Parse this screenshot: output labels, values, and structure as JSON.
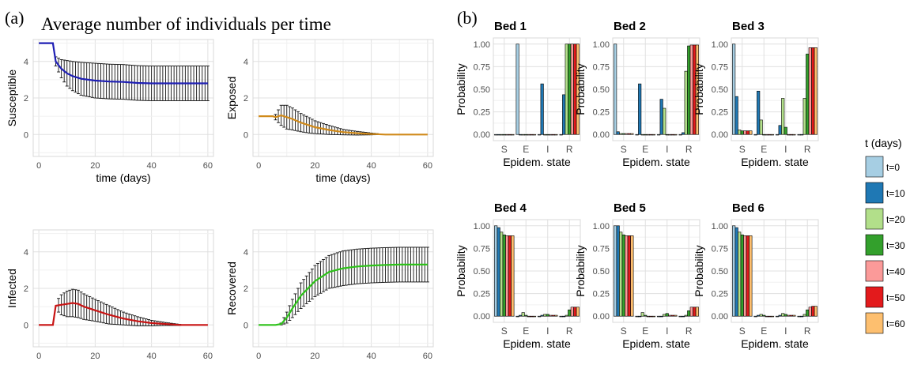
{
  "panel_a": {
    "tag": "(a)",
    "title": "Average number of individuals per time"
  },
  "panel_b": {
    "tag": "(b)"
  },
  "colors": {
    "susceptible": "#1f1fb4",
    "exposed": "#d08a1a",
    "infected": "#c81414",
    "recovered": "#2ec21a",
    "t0": "#a6cee3",
    "t10": "#1f78b4",
    "t20": "#b2df8a",
    "t30": "#33a02c",
    "t40": "#fb9a99",
    "t50": "#e31a1c",
    "t60": "#fdbf6f"
  },
  "legend": {
    "title": "t (days)",
    "entries": [
      "t=0",
      "t=10",
      "t=20",
      "t=30",
      "t=40",
      "t=50",
      "t=60"
    ]
  },
  "chart_data": [
    {
      "type": "line",
      "id": "susceptible",
      "ylabel": "Susceptible",
      "xlabel": "time (days)",
      "xlim": [
        -2,
        62
      ],
      "ylim": [
        -1.2,
        5.2
      ],
      "xticks": [
        0,
        20,
        40,
        60
      ],
      "yticks": [
        0,
        2,
        4
      ],
      "grid": true,
      "series_color_key": "susceptible",
      "x": [
        0,
        5,
        6,
        8,
        10,
        12,
        15,
        20,
        25,
        30,
        35,
        40,
        45,
        50,
        55,
        60
      ],
      "y": [
        5,
        5,
        4.0,
        3.6,
        3.35,
        3.2,
        3.05,
        2.95,
        2.9,
        2.88,
        2.82,
        2.8,
        2.8,
        2.8,
        2.8,
        2.8
      ],
      "err": [
        0,
        0,
        0.25,
        0.5,
        0.7,
        0.8,
        0.9,
        0.95,
        0.95,
        0.95,
        0.95,
        0.95,
        0.95,
        0.95,
        0.95,
        0.95
      ],
      "err_start": 6
    },
    {
      "type": "line",
      "id": "exposed",
      "ylabel": "Exposed",
      "xlabel": "time (days)",
      "xlim": [
        -2,
        62
      ],
      "ylim": [
        -1.2,
        5.2
      ],
      "xticks": [
        0,
        20,
        40,
        60
      ],
      "yticks": [
        0,
        2,
        4
      ],
      "grid": true,
      "series_color_key": "exposed",
      "x": [
        0,
        5,
        6,
        8,
        10,
        12,
        15,
        18,
        20,
        25,
        30,
        35,
        40,
        42,
        45,
        50,
        55,
        60
      ],
      "y": [
        1,
        1,
        0.95,
        1.05,
        0.95,
        0.85,
        0.65,
        0.5,
        0.4,
        0.25,
        0.13,
        0.07,
        0.03,
        0.02,
        0,
        0,
        0,
        0
      ],
      "err": [
        0,
        0,
        0.15,
        0.55,
        0.65,
        0.6,
        0.5,
        0.42,
        0.35,
        0.25,
        0.15,
        0.1,
        0.05,
        0.03,
        0,
        0,
        0,
        0
      ],
      "err_start": 6,
      "err_end": 42
    },
    {
      "type": "line",
      "id": "infected",
      "ylabel": "Infected",
      "xlabel": "time (days)",
      "xlim": [
        -2,
        62
      ],
      "ylim": [
        -1.2,
        5.2
      ],
      "xticks": [
        0,
        20,
        40,
        60
      ],
      "yticks": [
        0,
        2,
        4
      ],
      "grid": true,
      "series_color_key": "infected",
      "x": [
        0,
        5,
        6,
        8,
        10,
        12,
        14,
        16,
        20,
        25,
        30,
        35,
        40,
        45,
        50,
        55,
        60
      ],
      "y": [
        0,
        0,
        1.05,
        1.1,
        1.15,
        1.2,
        1.15,
        1.0,
        0.8,
        0.55,
        0.35,
        0.2,
        0.1,
        0.05,
        0,
        0,
        0
      ],
      "err": [
        0,
        0,
        0.2,
        0.55,
        0.7,
        0.75,
        0.75,
        0.7,
        0.6,
        0.5,
        0.35,
        0.25,
        0.15,
        0.08,
        0.03,
        0,
        0
      ],
      "err_start": 7,
      "err_end": 50
    },
    {
      "type": "line",
      "id": "recovered",
      "ylabel": "Recovered",
      "xlabel": "time (days)",
      "xlim": [
        -2,
        62
      ],
      "ylim": [
        -1.2,
        5.2
      ],
      "xticks": [
        0,
        20,
        40,
        60
      ],
      "yticks": [
        0,
        2,
        4
      ],
      "grid": true,
      "series_color_key": "recovered",
      "x": [
        0,
        6,
        8,
        10,
        12,
        15,
        20,
        25,
        30,
        35,
        40,
        45,
        50,
        55,
        60
      ],
      "y": [
        0,
        0,
        0.05,
        0.4,
        0.9,
        1.6,
        2.4,
        2.9,
        3.1,
        3.2,
        3.25,
        3.28,
        3.3,
        3.3,
        3.3
      ],
      "err": [
        0,
        0,
        0.05,
        0.3,
        0.5,
        0.7,
        0.85,
        0.9,
        0.95,
        0.95,
        0.95,
        0.95,
        0.95,
        0.95,
        0.95
      ],
      "err_start": 8
    },
    {
      "type": "bar",
      "title": "Bed 1",
      "xlabel": "Epidem. state",
      "ylabel": "Probability",
      "categories": [
        "S",
        "E",
        "I",
        "R"
      ],
      "ylim": [
        0,
        1
      ],
      "yticks": [
        "0.00",
        "0.25",
        "0.50",
        "0.75",
        "1.00"
      ],
      "series_names": [
        "t=0",
        "t=10",
        "t=20",
        "t=30",
        "t=40",
        "t=50",
        "t=60"
      ],
      "values": [
        [
          0,
          0,
          0,
          0,
          0,
          0,
          0
        ],
        [
          1.0,
          0,
          0,
          0,
          0,
          0,
          0
        ],
        [
          0,
          0.56,
          0,
          0,
          0,
          0,
          0
        ],
        [
          0,
          0.44,
          1.0,
          1.0,
          1.0,
          1.0,
          1.0
        ]
      ]
    },
    {
      "type": "bar",
      "title": "Bed 2",
      "xlabel": "Epidem. state",
      "ylabel": "Probability",
      "categories": [
        "S",
        "E",
        "I",
        "R"
      ],
      "ylim": [
        0,
        1
      ],
      "yticks": [
        "0.00",
        "0.25",
        "0.50",
        "0.75",
        "1.00"
      ],
      "series_names": [
        "t=0",
        "t=10",
        "t=20",
        "t=30",
        "t=40",
        "t=50",
        "t=60"
      ],
      "values": [
        [
          1.0,
          0.03,
          0.01,
          0.01,
          0.01,
          0.01,
          0.01
        ],
        [
          0,
          0.56,
          0,
          0,
          0,
          0,
          0
        ],
        [
          0,
          0.39,
          0.29,
          0,
          0,
          0,
          0
        ],
        [
          0,
          0.02,
          0.7,
          0.98,
          0.99,
          0.99,
          0.99
        ]
      ]
    },
    {
      "type": "bar",
      "title": "Bed 3",
      "xlabel": "Epidem. state",
      "ylabel": "Probability",
      "categories": [
        "S",
        "E",
        "I",
        "R"
      ],
      "ylim": [
        0,
        1
      ],
      "yticks": [
        "0.00",
        "0.25",
        "0.50",
        "0.75",
        "1.00"
      ],
      "series_names": [
        "t=0",
        "t=10",
        "t=20",
        "t=30",
        "t=40",
        "t=50",
        "t=60"
      ],
      "values": [
        [
          1.0,
          0.42,
          0.05,
          0.04,
          0.04,
          0.04,
          0.04
        ],
        [
          0,
          0.48,
          0.16,
          0,
          0,
          0,
          0
        ],
        [
          0,
          0.1,
          0.4,
          0.08,
          0,
          0,
          0
        ],
        [
          0,
          0,
          0.4,
          0.89,
          0.96,
          0.96,
          0.96
        ]
      ]
    },
    {
      "type": "bar",
      "title": "Bed 4",
      "xlabel": "Epidem. state",
      "ylabel": "Probability",
      "categories": [
        "S",
        "E",
        "I",
        "R"
      ],
      "ylim": [
        0,
        1
      ],
      "yticks": [
        "0.00",
        "0.25",
        "0.50",
        "0.75",
        "1.00"
      ],
      "series_names": [
        "t=0",
        "t=10",
        "t=20",
        "t=30",
        "t=40",
        "t=50",
        "t=60"
      ],
      "values": [
        [
          1.0,
          0.98,
          0.93,
          0.9,
          0.89,
          0.89,
          0.89
        ],
        [
          0,
          0.01,
          0.04,
          0.01,
          0,
          0,
          0
        ],
        [
          0,
          0.01,
          0.02,
          0.02,
          0.01,
          0.01,
          0.01
        ],
        [
          0,
          0,
          0.01,
          0.07,
          0.1,
          0.1,
          0.1
        ]
      ]
    },
    {
      "type": "bar",
      "title": "Bed 5",
      "xlabel": "Epidem. state",
      "ylabel": "Probability",
      "categories": [
        "S",
        "E",
        "I",
        "R"
      ],
      "ylim": [
        0,
        1
      ],
      "yticks": [
        "0.00",
        "0.25",
        "0.50",
        "0.75",
        "1.00"
      ],
      "series_names": [
        "t=0",
        "t=10",
        "t=20",
        "t=30",
        "t=40",
        "t=50",
        "t=60"
      ],
      "values": [
        [
          1.0,
          1.0,
          0.93,
          0.9,
          0.89,
          0.89,
          0.89
        ],
        [
          0,
          0,
          0.04,
          0.01,
          0,
          0,
          0
        ],
        [
          0,
          0,
          0.02,
          0.03,
          0.01,
          0.01,
          0.01
        ],
        [
          0,
          0,
          0.01,
          0.06,
          0.1,
          0.1,
          0.1
        ]
      ]
    },
    {
      "type": "bar",
      "title": "Bed 6",
      "xlabel": "Epidem. state",
      "ylabel": "Probability",
      "categories": [
        "S",
        "E",
        "I",
        "R"
      ],
      "ylim": [
        0,
        1
      ],
      "yticks": [
        "0.00",
        "0.25",
        "0.50",
        "0.75",
        "1.00"
      ],
      "series_names": [
        "t=0",
        "t=10",
        "t=20",
        "t=30",
        "t=40",
        "t=50",
        "t=60"
      ],
      "values": [
        [
          1.0,
          0.98,
          0.93,
          0.9,
          0.89,
          0.89,
          0.89
        ],
        [
          0,
          0.01,
          0.02,
          0.01,
          0,
          0,
          0
        ],
        [
          0,
          0.01,
          0.03,
          0.02,
          0.01,
          0.01,
          0.01
        ],
        [
          0,
          0,
          0.02,
          0.07,
          0.1,
          0.11,
          0.11
        ]
      ]
    }
  ]
}
